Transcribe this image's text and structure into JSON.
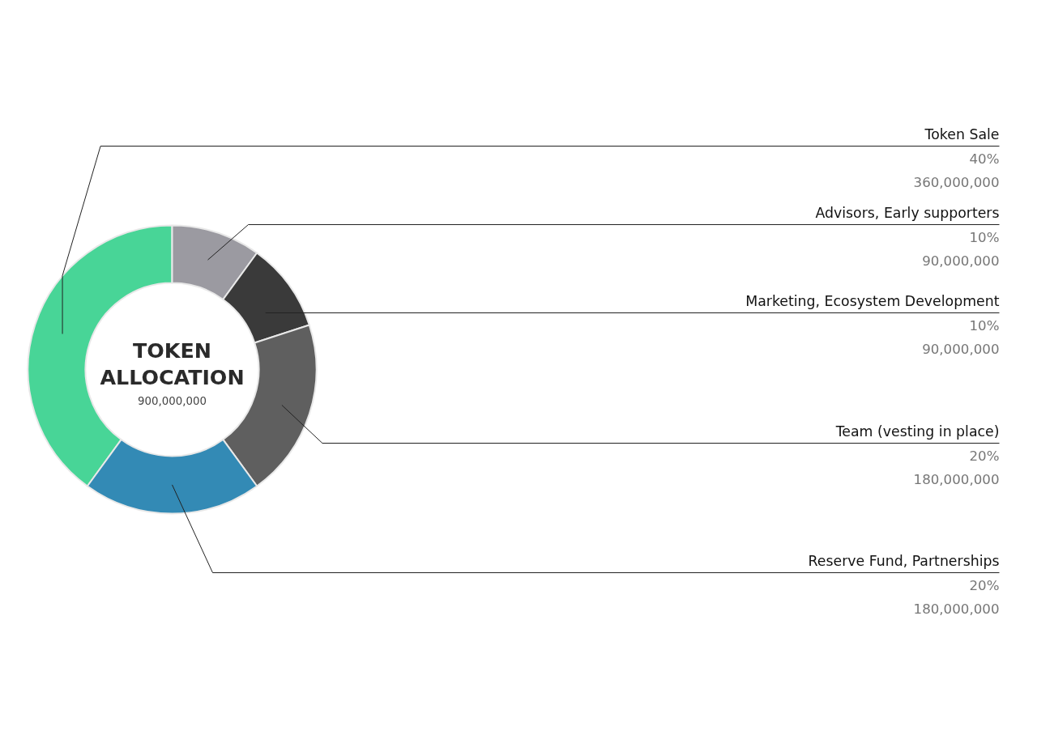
{
  "chart_data": {
    "type": "donut",
    "title": "TOKEN ALLOCATION",
    "subtitle": "900,000,000",
    "categories": [
      "Token Sale",
      "Advisors, Early supporters",
      "Marketing, Ecosystem Development",
      "Team (vesting in place)",
      "Reserve Fund, Partnerships"
    ],
    "values": [
      40,
      10,
      10,
      20,
      20
    ],
    "colors": [
      "#48d597",
      "#9b9aa1",
      "#3a3a3a",
      "#5f5f5f",
      "#338ab5"
    ],
    "value_labels": [
      "40%",
      "10%",
      "10%",
      "20%",
      "20%"
    ],
    "annotations": [
      {
        "text": "360,000,000",
        "x": "Token Sale"
      },
      {
        "text": "90,000,000",
        "x": "Advisors, Early supporters"
      },
      {
        "text": "90,000,000",
        "x": "Marketing, Ecosystem Development"
      },
      {
        "text": "180,000,000",
        "x": "Team (vesting in place)"
      },
      {
        "text": "180,000,000",
        "x": "Reserve Fund, Partnerships"
      }
    ]
  }
}
